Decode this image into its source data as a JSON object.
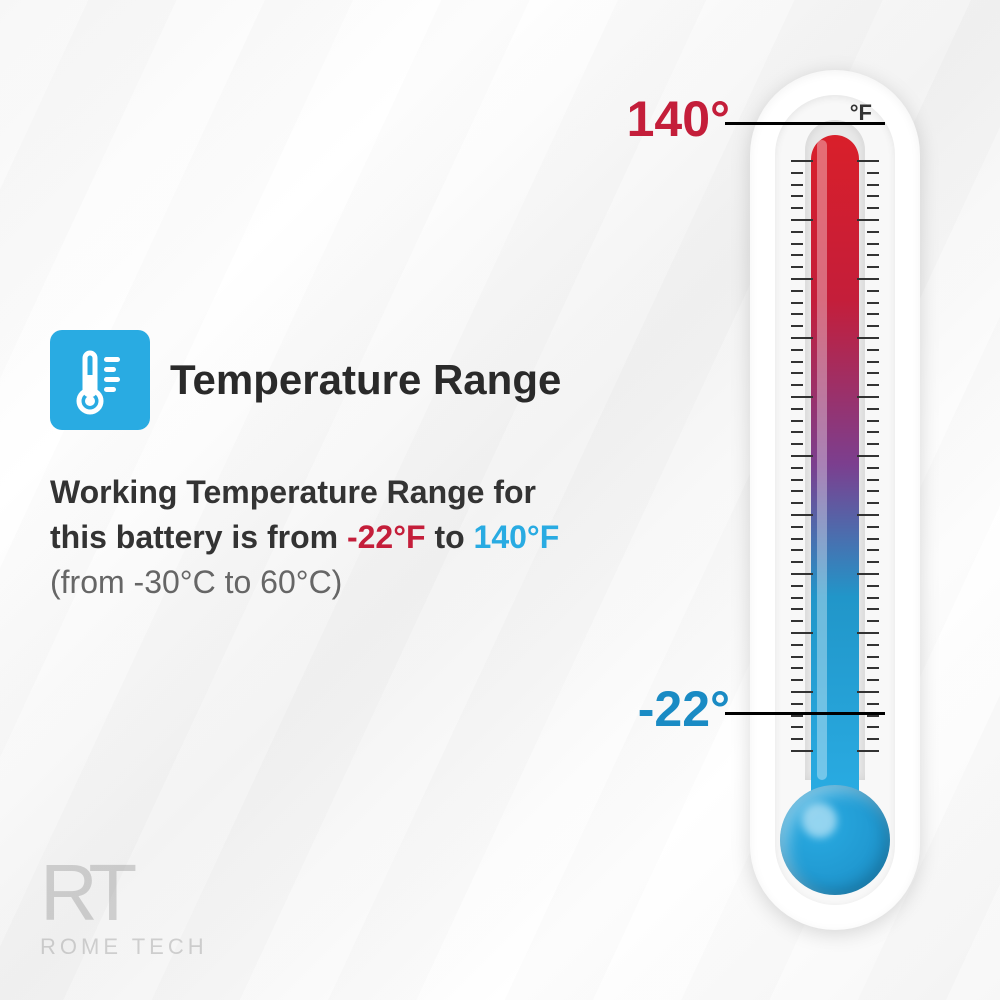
{
  "title": "Temperature Range",
  "description": {
    "line_prefix": "Working Temperature Range for this battery is from ",
    "low_temp": "-22°F",
    "mid_text": " to ",
    "high_temp": "140°F",
    "subtitle": "(from -30°C to 60°C)"
  },
  "thermometer": {
    "unit": "°F",
    "high_label": "140°",
    "low_label": "-22°",
    "fill_gradient_top": "#d91f2a",
    "fill_gradient_mid1": "#c41e3a",
    "fill_gradient_mid2": "#7b3f8f",
    "fill_gradient_mid3": "#2196c9",
    "fill_gradient_bottom": "#29abe2",
    "bulb_color": "#29abe2",
    "bulb_dark": "#1a8bc4"
  },
  "colors": {
    "icon_bg": "#29abe2",
    "title_color": "#2a2a2a",
    "text_color": "#333333",
    "subtitle_color": "#666666",
    "low_temp_color": "#c41e3a",
    "high_temp_color": "#29abe2",
    "high_label_color": "#c41e3a",
    "low_label_color": "#1a8bc4"
  },
  "logo": {
    "symbol": "RT",
    "text": "ROME TECH"
  }
}
